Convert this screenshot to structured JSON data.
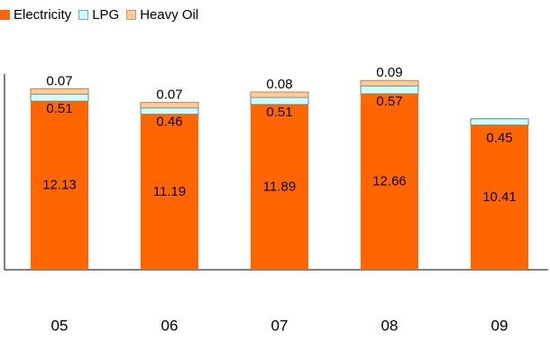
{
  "chart_data": {
    "type": "bar",
    "stacked": true,
    "categories": [
      "05",
      "06",
      "07",
      "08",
      "09"
    ],
    "series": [
      {
        "name": "Electricity",
        "color": "#ff6600",
        "values": [
          12.13,
          11.19,
          11.89,
          12.66,
          10.41
        ]
      },
      {
        "name": "LPG",
        "color": "#ccffff",
        "values": [
          0.51,
          0.46,
          0.51,
          0.57,
          0.45
        ]
      },
      {
        "name": "Heavy Oil",
        "color": "#ffcc99",
        "values": [
          0.07,
          0.07,
          0.08,
          0.09,
          null
        ]
      }
    ],
    "legend_position": "top-left",
    "grid": false
  }
}
